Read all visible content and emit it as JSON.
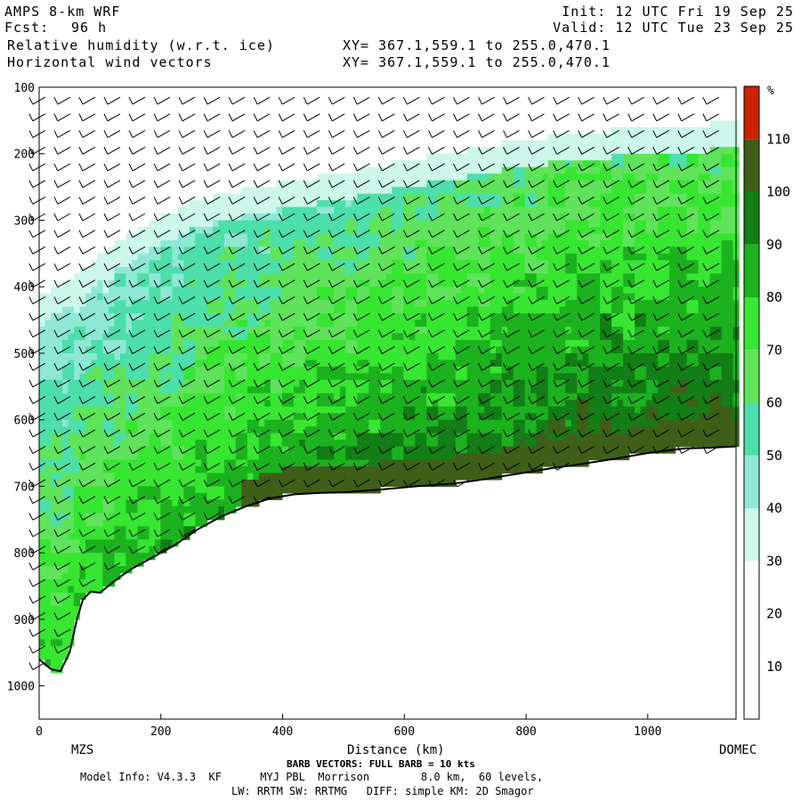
{
  "header": {
    "model": "AMPS 8-km WRF",
    "init": "Init: 12 UTC Fri 19 Sep 25",
    "fcst_label": "Fcst:",
    "fcst_value": "96 h",
    "valid": "Valid: 12 UTC Tue 23 Sep 25",
    "field1": "Relative humidity (w.r.t. ice)",
    "field2": "Horizontal wind vectors",
    "xy1": "XY= 367.1,559.1 to 255.0,470.1",
    "xy2": "XY= 367.1,559.1 to 255.0,470.1"
  },
  "footer": {
    "left_label": "MZS",
    "right_label": "DOMEC",
    "barb_note": "BARB VECTORS: FULL BARB = 10 kts",
    "model_info": "Model Info: V4.3.3  KF      MYJ PBL  Morrison        8.0 km,  60 levels,",
    "model_info2": "LW: RRTM SW: RRTMG   DIFF: simple KM: 2D Smagor"
  },
  "chart_data": {
    "type": "heatmap",
    "title": "Relative humidity (w.r.t. ice)",
    "xlabel": "Distance (km)",
    "ylabel": "",
    "xlim": [
      0,
      1145
    ],
    "ylim": [
      1050,
      100
    ],
    "x_ticks": [
      0,
      200,
      400,
      600,
      800,
      1000
    ],
    "y_ticks": [
      100,
      200,
      300,
      400,
      500,
      600,
      700,
      800,
      900,
      1000
    ],
    "colorbar": {
      "unit": "%",
      "ticks": [
        10,
        20,
        30,
        40,
        50,
        60,
        70,
        80,
        90,
        100,
        110
      ],
      "levels": [
        {
          "min": 0,
          "max": 30,
          "color": "#ffffff"
        },
        {
          "min": 30,
          "max": 40,
          "color": "#ccf7ea"
        },
        {
          "min": 40,
          "max": 50,
          "color": "#8ee8d4"
        },
        {
          "min": 50,
          "max": 60,
          "color": "#4cdfab"
        },
        {
          "min": 60,
          "max": 70,
          "color": "#5fe35a"
        },
        {
          "min": 70,
          "max": 80,
          "color": "#37e630"
        },
        {
          "min": 80,
          "max": 90,
          "color": "#1bb21e"
        },
        {
          "min": 90,
          "max": 100,
          "color": "#137d16"
        },
        {
          "min": 100,
          "max": 110,
          "color": "#3f5f18"
        },
        {
          "min": 110,
          "max": 120,
          "color": "#cc2200"
        }
      ]
    },
    "terrain_surface": [
      [
        0,
        960
      ],
      [
        10,
        968
      ],
      [
        20,
        975
      ],
      [
        35,
        978
      ],
      [
        50,
        950
      ],
      [
        62,
        900
      ],
      [
        72,
        870
      ],
      [
        85,
        858
      ],
      [
        100,
        860
      ],
      [
        120,
        845
      ],
      [
        150,
        825
      ],
      [
        180,
        810
      ],
      [
        220,
        790
      ],
      [
        260,
        765
      ],
      [
        300,
        745
      ],
      [
        340,
        730
      ],
      [
        380,
        718
      ],
      [
        420,
        712
      ],
      [
        460,
        710
      ],
      [
        500,
        709
      ],
      [
        560,
        705
      ],
      [
        620,
        700
      ],
      [
        680,
        696
      ],
      [
        720,
        691
      ],
      [
        780,
        682
      ],
      [
        840,
        673
      ],
      [
        880,
        668
      ],
      [
        950,
        658
      ],
      [
        1000,
        650
      ],
      [
        1060,
        643
      ],
      [
        1100,
        642
      ],
      [
        1145,
        640
      ]
    ],
    "moist_top": [
      [
        0,
        450
      ],
      [
        30,
        440
      ],
      [
        60,
        420
      ],
      [
        90,
        400
      ],
      [
        140,
        365
      ],
      [
        180,
        345
      ],
      [
        240,
        318
      ],
      [
        300,
        300
      ],
      [
        360,
        290
      ],
      [
        420,
        280
      ],
      [
        500,
        270
      ],
      [
        560,
        258
      ],
      [
        620,
        248
      ],
      [
        700,
        235
      ],
      [
        780,
        222
      ],
      [
        860,
        212
      ],
      [
        940,
        205
      ],
      [
        1020,
        200
      ],
      [
        1100,
        195
      ],
      [
        1145,
        192
      ]
    ]
  }
}
